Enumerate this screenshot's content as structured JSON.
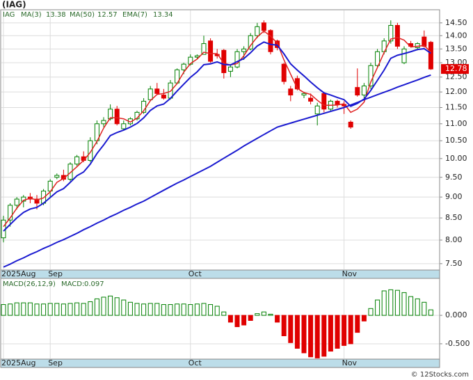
{
  "chart_data": {
    "type": "candlestick",
    "title": "(IAG)",
    "symbol": "IAG",
    "categories": [
      "2025Aug",
      null,
      null,
      null,
      null,
      null,
      null,
      "Sep",
      null,
      null,
      null,
      null,
      null,
      null,
      null,
      null,
      null,
      null,
      null,
      null,
      null,
      null,
      null,
      null,
      null,
      null,
      null,
      null,
      "Oct",
      null,
      null,
      null,
      null,
      null,
      null,
      null,
      null,
      null,
      null,
      null,
      null,
      null,
      null,
      null,
      null,
      null,
      null,
      null,
      null,
      null,
      null,
      "Nov",
      null,
      null,
      null,
      null,
      null,
      null,
      null,
      null,
      null,
      null,
      null,
      null,
      null
    ],
    "open": [
      8.05,
      8.45,
      8.8,
      8.9,
      9.0,
      8.95,
      8.85,
      9.15,
      9.5,
      9.55,
      9.45,
      9.85,
      10.05,
      9.95,
      10.5,
      11.0,
      11.15,
      11.45,
      10.85,
      11.0,
      11.15,
      11.35,
      11.75,
      12.1,
      11.9,
      11.8,
      12.3,
      12.75,
      12.95,
      13.2,
      13.3,
      13.8,
      13.3,
      13.45,
      12.7,
      12.85,
      13.4,
      13.5,
      14.0,
      14.5,
      14.2,
      13.8,
      12.95,
      12.1,
      12.45,
      11.9,
      11.8,
      11.3,
      11.95,
      11.45,
      11.7,
      11.6,
      11.05,
      12.15,
      11.9,
      12.2,
      12.9,
      13.4,
      13.8,
      14.4,
      13.0,
      13.7,
      13.55,
      13.95,
      13.75
    ],
    "high": [
      8.55,
      8.85,
      9.0,
      9.05,
      9.1,
      9.05,
      9.2,
      9.45,
      9.6,
      9.7,
      9.9,
      10.1,
      10.2,
      10.6,
      11.1,
      11.2,
      11.6,
      11.55,
      11.1,
      11.2,
      11.4,
      11.8,
      12.2,
      12.3,
      12.1,
      12.4,
      12.8,
      13.0,
      13.3,
      13.3,
      14.0,
      13.9,
      13.5,
      13.5,
      12.95,
      13.5,
      13.6,
      14.1,
      14.5,
      14.6,
      14.25,
      13.85,
      13.0,
      12.2,
      12.55,
      12.0,
      11.95,
      11.65,
      12.0,
      11.75,
      11.75,
      11.7,
      11.1,
      12.8,
      12.3,
      13.0,
      13.5,
      13.9,
      14.6,
      14.5,
      13.6,
      13.8,
      13.75,
      14.2,
      13.8
    ],
    "low": [
      7.95,
      8.3,
      8.7,
      8.75,
      8.85,
      8.7,
      8.8,
      9.0,
      9.45,
      9.4,
      9.4,
      9.8,
      9.9,
      9.9,
      10.4,
      10.9,
      11.1,
      10.95,
      10.8,
      10.95,
      11.1,
      11.3,
      11.7,
      11.9,
      11.75,
      11.75,
      12.25,
      12.6,
      12.9,
      13.15,
      13.3,
      13.0,
      13.15,
      12.45,
      12.5,
      12.8,
      13.1,
      13.45,
      13.9,
      14.1,
      13.3,
      13.45,
      12.25,
      11.7,
      12.05,
      11.8,
      11.6,
      10.95,
      11.35,
      11.4,
      11.5,
      11.3,
      10.85,
      11.85,
      11.8,
      12.1,
      12.85,
      13.3,
      13.7,
      13.5,
      12.95,
      13.55,
      13.45,
      13.55,
      12.75
    ],
    "close": [
      8.45,
      8.8,
      8.95,
      9.0,
      8.95,
      8.85,
      9.15,
      9.4,
      9.55,
      9.45,
      9.85,
      10.05,
      9.95,
      10.5,
      11.0,
      11.1,
      11.45,
      11.0,
      11.0,
      11.15,
      11.35,
      11.7,
      12.1,
      11.95,
      11.8,
      12.3,
      12.75,
      12.95,
      13.2,
      13.25,
      13.7,
      13.05,
      13.25,
      12.65,
      12.85,
      13.4,
      13.5,
      14.0,
      14.35,
      14.2,
      13.4,
      13.55,
      12.35,
      11.9,
      12.1,
      11.95,
      11.7,
      11.55,
      11.45,
      11.7,
      11.6,
      11.55,
      10.9,
      11.9,
      12.2,
      12.9,
      13.4,
      13.8,
      14.4,
      13.6,
      13.5,
      13.6,
      13.7,
      13.6,
      12.78
    ],
    "up_color": "#008000",
    "down_color": "#e00000",
    "log": true,
    "ylim": [
      7.37,
      15.03
    ],
    "yticks": [
      {
        "value": 14.5,
        "label": "14.50"
      },
      {
        "value": 14,
        "label": "14.00"
      },
      {
        "value": 13.5,
        "label": "13.50"
      },
      {
        "value": 13,
        "label": "13.00"
      },
      {
        "value": 12.5,
        "label": "12.50"
      },
      {
        "value": 12,
        "label": "12.00"
      },
      {
        "value": 11.5,
        "label": "11.50"
      },
      {
        "value": 11,
        "label": "11.00"
      },
      {
        "value": 10.5,
        "label": "10.50"
      },
      {
        "value": 10,
        "label": "10.00"
      },
      {
        "value": 9.5,
        "label": "9.50"
      },
      {
        "value": 9,
        "label": "9.00"
      },
      {
        "value": 8.5,
        "label": "8.50"
      },
      {
        "value": 8,
        "label": "8.00"
      },
      {
        "value": 7.5,
        "label": "7.50"
      }
    ],
    "grid": true,
    "series": [
      {
        "name": "MA(3)",
        "color": "#e02020",
        "values": [
          8.3,
          8.5,
          8.73,
          8.92,
          8.97,
          8.93,
          8.98,
          9.13,
          9.37,
          9.47,
          9.62,
          9.78,
          9.95,
          10.17,
          10.48,
          10.87,
          11.18,
          11.18,
          11.15,
          11.05,
          11.17,
          11.4,
          11.72,
          11.92,
          11.95,
          12.02,
          12.28,
          12.67,
          12.97,
          13.13,
          13.38,
          13.33,
          13.33,
          12.98,
          12.92,
          12.97,
          13.25,
          13.63,
          13.95,
          14.18,
          13.98,
          13.72,
          13.1,
          12.6,
          12.12,
          11.98,
          11.92,
          11.73,
          11.57,
          11.57,
          11.58,
          11.62,
          11.35,
          11.45,
          11.67,
          12.33,
          12.83,
          13.37,
          13.87,
          13.93,
          13.83,
          13.57,
          13.6,
          13.63,
          13.38
        ]
      },
      {
        "name": "MA(50)",
        "color": "#1a1ad0",
        "values": [
          7.43,
          7.49,
          7.56,
          7.62,
          7.69,
          7.75,
          7.82,
          7.88,
          7.95,
          8.01,
          8.08,
          8.15,
          8.23,
          8.3,
          8.38,
          8.45,
          8.53,
          8.6,
          8.68,
          8.75,
          8.83,
          8.9,
          8.99,
          9.08,
          9.17,
          9.26,
          9.35,
          9.43,
          9.52,
          9.61,
          9.7,
          9.79,
          9.9,
          10.01,
          10.12,
          10.23,
          10.35,
          10.46,
          10.57,
          10.68,
          10.79,
          10.9,
          10.96,
          11.02,
          11.08,
          11.14,
          11.2,
          11.26,
          11.32,
          11.38,
          11.44,
          11.5,
          11.58,
          11.66,
          11.75,
          11.83,
          11.91,
          11.99,
          12.07,
          12.16,
          12.24,
          12.32,
          12.4,
          12.49,
          12.57
        ]
      },
      {
        "name": "EMA(7)",
        "color": "#1a1ad0",
        "values": [
          8.2,
          8.35,
          8.5,
          8.63,
          8.71,
          8.75,
          8.85,
          8.99,
          9.13,
          9.21,
          9.37,
          9.54,
          9.64,
          9.85,
          10.14,
          10.38,
          10.65,
          10.74,
          10.81,
          10.9,
          11.01,
          11.18,
          11.41,
          11.55,
          11.61,
          11.79,
          12.03,
          12.26,
          12.49,
          12.68,
          12.93,
          12.96,
          13.03,
          12.94,
          12.92,
          13.04,
          13.15,
          13.36,
          13.61,
          13.76,
          13.67,
          13.64,
          13.32,
          12.96,
          12.74,
          12.54,
          12.33,
          12.14,
          11.97,
          11.9,
          11.82,
          11.75,
          11.54,
          11.63,
          11.77,
          12.05,
          12.39,
          12.74,
          13.16,
          13.27,
          13.33,
          13.4,
          13.48,
          13.51,
          13.34
        ]
      }
    ],
    "macd": {
      "name": "MACD(26,12,9)",
      "value_name": "MACD:",
      "values": [
        0.19,
        0.2,
        0.22,
        0.22,
        0.22,
        0.2,
        0.2,
        0.21,
        0.21,
        0.2,
        0.21,
        0.22,
        0.21,
        0.24,
        0.29,
        0.32,
        0.34,
        0.31,
        0.27,
        0.23,
        0.21,
        0.2,
        0.21,
        0.21,
        0.19,
        0.19,
        0.2,
        0.2,
        0.19,
        0.2,
        0.21,
        0.19,
        0.16,
        0.06,
        -0.12,
        -0.2,
        -0.17,
        -0.09,
        0.03,
        0.06,
        0.02,
        -0.12,
        -0.36,
        -0.48,
        -0.58,
        -0.66,
        -0.73,
        -0.75,
        -0.72,
        -0.63,
        -0.58,
        -0.53,
        -0.5,
        -0.3,
        -0.1,
        0.12,
        0.27,
        0.43,
        0.45,
        0.44,
        0.4,
        0.33,
        0.29,
        0.23,
        0.097
      ],
      "ylim": [
        -0.77,
        0.65
      ],
      "yticks": [
        {
          "value": 0,
          "label": "0.000"
        },
        {
          "value": -0.5,
          "label": "-0.500"
        }
      ],
      "up_color": "#008000",
      "down_color": "#e00000"
    },
    "credit": "© 12Stocks.com"
  }
}
